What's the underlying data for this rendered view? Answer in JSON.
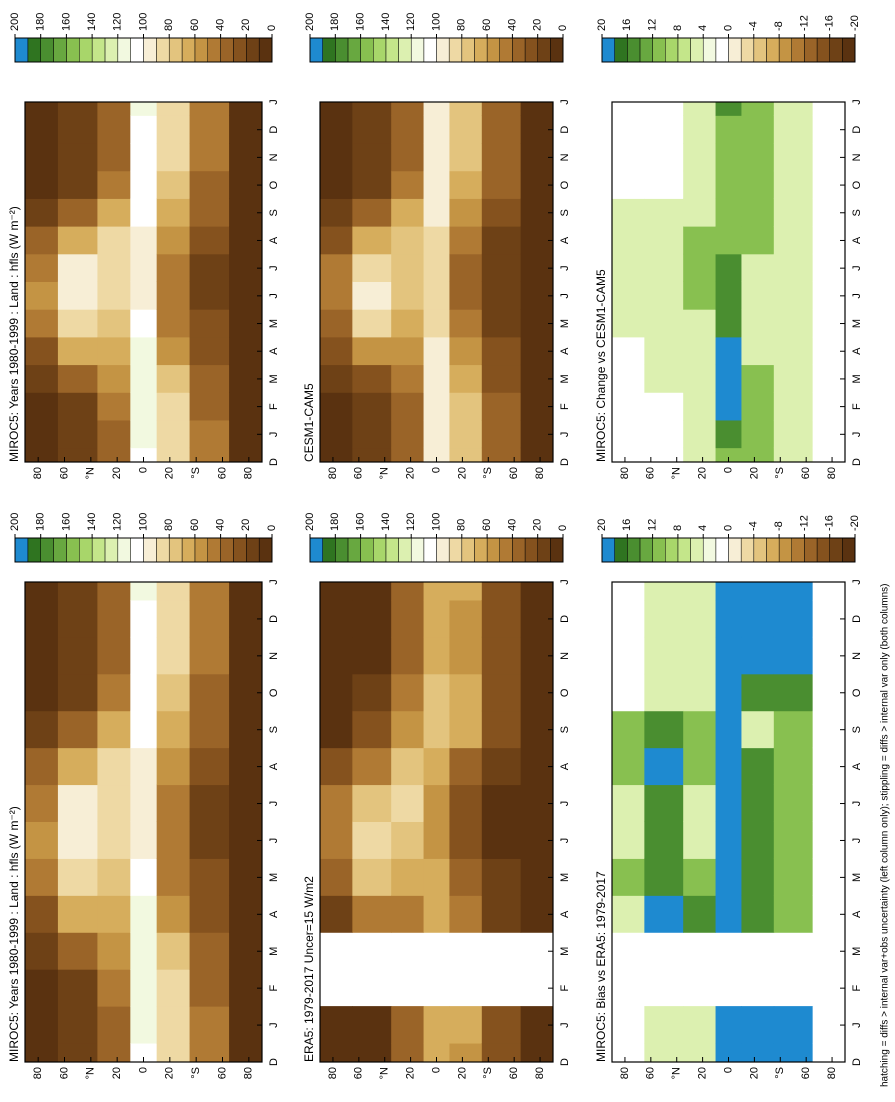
{
  "palette": [
    "#5a3210",
    "#6e4116",
    "#85521e",
    "#9a6428",
    "#b07a34",
    "#c49444",
    "#d6ad5c",
    "#e3c47e",
    "#eed9a4",
    "#f7eed6",
    "#ffffff",
    "#f2f9e0",
    "#dcf0b0",
    "#c4e68a",
    "#a8d66a",
    "#88c050",
    "#68a840",
    "#4a8e30",
    "#2f7420",
    "#1e8ad0"
  ],
  "footnote": "hatching = diffs > internal var+obs uncertainty (left column only); stippling = diffs > internal var only (both columns)",
  "chart_data": [
    {
      "type": "contour",
      "title": "MIROC5: Years 1980-1999 : Land : hfls (W m⁻²)",
      "categories": [
        "D",
        "J",
        "F",
        "M",
        "A",
        "M",
        "J",
        "J",
        "A",
        "S",
        "O",
        "N",
        "D",
        "J"
      ],
      "ylim": [
        -90,
        90
      ],
      "lats": [
        80,
        50,
        20,
        0,
        -20,
        -50,
        -80
      ],
      "yticks": [
        80,
        60,
        {
          "value": 40,
          "label": "°N"
        },
        20,
        0,
        {
          "value": -20,
          "label": "20"
        },
        {
          "value": -40,
          "label": "°S"
        },
        {
          "value": -60,
          "label": "60"
        },
        {
          "value": -80,
          "label": "80"
        }
      ],
      "levels": [
        0,
        10,
        20,
        30,
        40,
        50,
        60,
        70,
        80,
        90,
        100,
        110,
        120,
        130,
        140,
        150,
        160,
        170,
        180,
        190,
        200
      ],
      "colorbar_ticks": [
        200,
        180,
        160,
        140,
        120,
        100,
        80,
        60,
        40,
        20,
        0
      ],
      "values": [
        [
          5,
          5,
          5,
          10,
          20,
          40,
          50,
          45,
          30,
          15,
          5,
          5,
          5,
          5
        ],
        [
          10,
          10,
          15,
          30,
          60,
          85,
          95,
          90,
          65,
          35,
          15,
          10,
          10,
          10
        ],
        [
          35,
          35,
          40,
          50,
          60,
          70,
          80,
          85,
          80,
          65,
          45,
          35,
          35,
          35
        ],
        [
          105,
          110,
          115,
          115,
          110,
          100,
          95,
          95,
          95,
          100,
          105,
          105,
          105,
          110
        ],
        [
          80,
          85,
          80,
          70,
          55,
          45,
          40,
          40,
          50,
          65,
          75,
          80,
          80,
          85
        ],
        [
          40,
          40,
          35,
          30,
          25,
          20,
          15,
          15,
          20,
          30,
          35,
          40,
          40,
          40
        ],
        [
          0,
          0,
          0,
          0,
          0,
          0,
          0,
          0,
          0,
          0,
          0,
          0,
          0,
          0
        ]
      ]
    },
    {
      "type": "contour",
      "title": "ERA5: 1979-2017 Uncer=15 W/m2",
      "categories": [
        "D",
        "J",
        "F",
        "M",
        "A",
        "M",
        "J",
        "J",
        "A",
        "S",
        "O",
        "N",
        "D",
        "J"
      ],
      "ylim": [
        -90,
        90
      ],
      "lats": [
        80,
        50,
        20,
        0,
        -20,
        -50,
        -80
      ],
      "yticks": [
        80,
        60,
        {
          "value": 40,
          "label": "°N"
        },
        20,
        0,
        {
          "value": -20,
          "label": "20"
        },
        {
          "value": -40,
          "label": "°S"
        },
        {
          "value": -60,
          "label": "60"
        },
        {
          "value": -80,
          "label": "80"
        }
      ],
      "levels": [
        0,
        10,
        20,
        30,
        40,
        50,
        60,
        70,
        80,
        90,
        100,
        110,
        120,
        130,
        140,
        150,
        160,
        170,
        180,
        190,
        200
      ],
      "colorbar_ticks": [
        200,
        180,
        160,
        140,
        120,
        100,
        80,
        60,
        40,
        20,
        0
      ],
      "values": [
        [
          5,
          5,
          null,
          null,
          15,
          30,
          45,
          40,
          20,
          5,
          5,
          5,
          5,
          5
        ],
        [
          5,
          5,
          null,
          null,
          40,
          70,
          80,
          75,
          45,
          20,
          10,
          5,
          5,
          5
        ],
        [
          30,
          30,
          null,
          null,
          45,
          60,
          75,
          80,
          70,
          55,
          40,
          30,
          30,
          30
        ],
        [
          60,
          60,
          null,
          null,
          65,
          60,
          55,
          55,
          60,
          75,
          70,
          65,
          60,
          60
        ],
        [
          55,
          60,
          null,
          null,
          40,
          30,
          25,
          25,
          35,
          60,
          60,
          55,
          55,
          60
        ],
        [
          20,
          20,
          null,
          null,
          15,
          10,
          5,
          5,
          10,
          20,
          20,
          20,
          20,
          20
        ],
        [
          0,
          0,
          null,
          null,
          0,
          0,
          0,
          0,
          0,
          0,
          0,
          0,
          0,
          0
        ]
      ]
    },
    {
      "type": "contour",
      "title": "MIROC5: Bias vs ERA5: 1979-2017",
      "categories": [
        "D",
        "J",
        "F",
        "M",
        "A",
        "M",
        "J",
        "J",
        "A",
        "S",
        "O",
        "N",
        "D",
        "J"
      ],
      "ylim": [
        -90,
        90
      ],
      "lats": [
        80,
        50,
        20,
        0,
        -20,
        -50,
        -80
      ],
      "yticks": [
        80,
        60,
        {
          "value": 40,
          "label": "°N"
        },
        20,
        0,
        {
          "value": -20,
          "label": "20"
        },
        {
          "value": -40,
          "label": "°S"
        },
        {
          "value": -60,
          "label": "60"
        },
        {
          "value": -80,
          "label": "80"
        }
      ],
      "levels": [
        -20,
        -18,
        -16,
        -14,
        -12,
        -10,
        -8,
        -6,
        -4,
        -2,
        0,
        2,
        4,
        6,
        8,
        10,
        12,
        14,
        16,
        18,
        20
      ],
      "colorbar_ticks": [
        20,
        16,
        12,
        8,
        4,
        0,
        -4,
        -8,
        -12,
        -16,
        -20
      ],
      "values": [
        [
          0,
          0,
          null,
          null,
          5,
          10,
          5,
          5,
          10,
          10,
          0,
          0,
          0,
          0
        ],
        [
          5,
          5,
          null,
          null,
          20,
          15,
          15,
          15,
          20,
          15,
          5,
          5,
          5,
          5
        ],
        [
          5,
          5,
          null,
          null,
          15,
          10,
          5,
          5,
          10,
          10,
          5,
          5,
          5,
          5
        ],
        [
          45,
          50,
          null,
          null,
          45,
          40,
          40,
          40,
          35,
          25,
          35,
          40,
          45,
          50
        ],
        [
          25,
          25,
          null,
          null,
          15,
          15,
          15,
          15,
          15,
          5,
          15,
          25,
          25,
          25
        ],
        [
          20,
          20,
          null,
          null,
          10,
          10,
          10,
          10,
          10,
          10,
          15,
          20,
          20,
          20
        ],
        [
          0,
          0,
          null,
          null,
          0,
          0,
          0,
          0,
          0,
          0,
          0,
          0,
          0,
          0
        ]
      ]
    },
    {
      "type": "contour",
      "title": "MIROC5: Years 1980-1999 : Land : hfls (W m⁻²)",
      "categories": [
        "D",
        "J",
        "F",
        "M",
        "A",
        "M",
        "J",
        "J",
        "A",
        "S",
        "O",
        "N",
        "D",
        "J"
      ],
      "ylim": [
        -90,
        90
      ],
      "lats": [
        80,
        50,
        20,
        0,
        -20,
        -50,
        -80
      ],
      "yticks": [
        80,
        60,
        {
          "value": 40,
          "label": "°N"
        },
        20,
        0,
        {
          "value": -20,
          "label": "20"
        },
        {
          "value": -40,
          "label": "°S"
        },
        {
          "value": -60,
          "label": "60"
        },
        {
          "value": -80,
          "label": "80"
        }
      ],
      "levels": [
        0,
        10,
        20,
        30,
        40,
        50,
        60,
        70,
        80,
        90,
        100,
        110,
        120,
        130,
        140,
        150,
        160,
        170,
        180,
        190,
        200
      ],
      "colorbar_ticks": [
        200,
        180,
        160,
        140,
        120,
        100,
        80,
        60,
        40,
        20,
        0
      ],
      "values": [
        [
          5,
          5,
          5,
          10,
          20,
          40,
          50,
          45,
          30,
          15,
          5,
          5,
          5,
          5
        ],
        [
          10,
          10,
          15,
          30,
          60,
          85,
          95,
          90,
          65,
          35,
          15,
          10,
          10,
          10
        ],
        [
          35,
          35,
          40,
          50,
          60,
          70,
          80,
          85,
          80,
          65,
          45,
          35,
          35,
          35
        ],
        [
          105,
          110,
          115,
          115,
          110,
          100,
          95,
          95,
          95,
          100,
          105,
          105,
          105,
          110
        ],
        [
          80,
          85,
          80,
          70,
          55,
          45,
          40,
          40,
          50,
          65,
          75,
          80,
          80,
          85
        ],
        [
          40,
          40,
          35,
          30,
          25,
          20,
          15,
          15,
          20,
          30,
          35,
          40,
          40,
          40
        ],
        [
          0,
          0,
          0,
          0,
          0,
          0,
          0,
          0,
          0,
          0,
          0,
          0,
          0,
          0
        ]
      ]
    },
    {
      "type": "contour",
      "title": "CESM1-CAM5",
      "categories": [
        "D",
        "J",
        "F",
        "M",
        "A",
        "M",
        "J",
        "J",
        "A",
        "S",
        "O",
        "N",
        "D",
        "J"
      ],
      "ylim": [
        -90,
        90
      ],
      "lats": [
        80,
        50,
        20,
        0,
        -20,
        -50,
        -80
      ],
      "yticks": [
        80,
        60,
        {
          "value": 40,
          "label": "°N"
        },
        20,
        0,
        {
          "value": -20,
          "label": "20"
        },
        {
          "value": -40,
          "label": "°S"
        },
        {
          "value": -60,
          "label": "60"
        },
        {
          "value": -80,
          "label": "80"
        }
      ],
      "levels": [
        0,
        10,
        20,
        30,
        40,
        50,
        60,
        70,
        80,
        90,
        100,
        110,
        120,
        130,
        140,
        150,
        160,
        170,
        180,
        190,
        200
      ],
      "colorbar_ticks": [
        200,
        180,
        160,
        140,
        120,
        100,
        80,
        60,
        40,
        20,
        0
      ],
      "values": [
        [
          5,
          5,
          5,
          10,
          20,
          35,
          45,
          40,
          25,
          10,
          5,
          5,
          5,
          5
        ],
        [
          10,
          10,
          15,
          25,
          55,
          80,
          90,
          85,
          60,
          30,
          15,
          10,
          10,
          10
        ],
        [
          30,
          30,
          35,
          45,
          55,
          65,
          70,
          75,
          70,
          60,
          40,
          30,
          30,
          30
        ],
        [
          95,
          95,
          95,
          95,
          90,
          85,
          80,
          80,
          85,
          90,
          95,
          95,
          95,
          95
        ],
        [
          70,
          75,
          70,
          60,
          50,
          40,
          35,
          35,
          40,
          55,
          65,
          70,
          70,
          75
        ],
        [
          35,
          35,
          30,
          25,
          20,
          15,
          10,
          10,
          15,
          25,
          30,
          35,
          35,
          35
        ],
        [
          0,
          0,
          0,
          0,
          0,
          0,
          0,
          0,
          0,
          0,
          0,
          0,
          0,
          0
        ]
      ]
    },
    {
      "type": "contour",
      "title": "MIROC5: Change vs CESM1-CAM5",
      "categories": [
        "D",
        "J",
        "F",
        "M",
        "A",
        "M",
        "J",
        "J",
        "A",
        "S",
        "O",
        "N",
        "D",
        "J"
      ],
      "ylim": [
        -90,
        90
      ],
      "lats": [
        80,
        50,
        20,
        0,
        -20,
        -50,
        -80
      ],
      "yticks": [
        80,
        60,
        {
          "value": 40,
          "label": "°N"
        },
        20,
        0,
        {
          "value": -20,
          "label": "20"
        },
        {
          "value": -40,
          "label": "°S"
        },
        {
          "value": -60,
          "label": "60"
        },
        {
          "value": -80,
          "label": "80"
        }
      ],
      "levels": [
        -20,
        -18,
        -16,
        -14,
        -12,
        -10,
        -8,
        -6,
        -4,
        -2,
        0,
        2,
        4,
        6,
        8,
        10,
        12,
        14,
        16,
        18,
        20
      ],
      "colorbar_ticks": [
        20,
        16,
        12,
        8,
        4,
        0,
        -4,
        -8,
        -12,
        -16,
        -20
      ],
      "values": [
        [
          0,
          0,
          0,
          0,
          0,
          5,
          5,
          5,
          5,
          5,
          0,
          0,
          0,
          0
        ],
        [
          0,
          0,
          0,
          5,
          5,
          5,
          5,
          5,
          5,
          5,
          0,
          0,
          0,
          0
        ],
        [
          5,
          5,
          5,
          5,
          5,
          5,
          10,
          10,
          10,
          5,
          5,
          5,
          5,
          5
        ],
        [
          10,
          15,
          20,
          20,
          20,
          15,
          15,
          15,
          10,
          10,
          10,
          10,
          10,
          15
        ],
        [
          10,
          10,
          10,
          10,
          5,
          5,
          5,
          5,
          10,
          10,
          10,
          10,
          10,
          10
        ],
        [
          5,
          5,
          5,
          5,
          5,
          5,
          5,
          5,
          5,
          5,
          5,
          5,
          5,
          5
        ],
        [
          0,
          0,
          0,
          0,
          0,
          0,
          0,
          0,
          0,
          0,
          0,
          0,
          0,
          0
        ]
      ]
    }
  ]
}
